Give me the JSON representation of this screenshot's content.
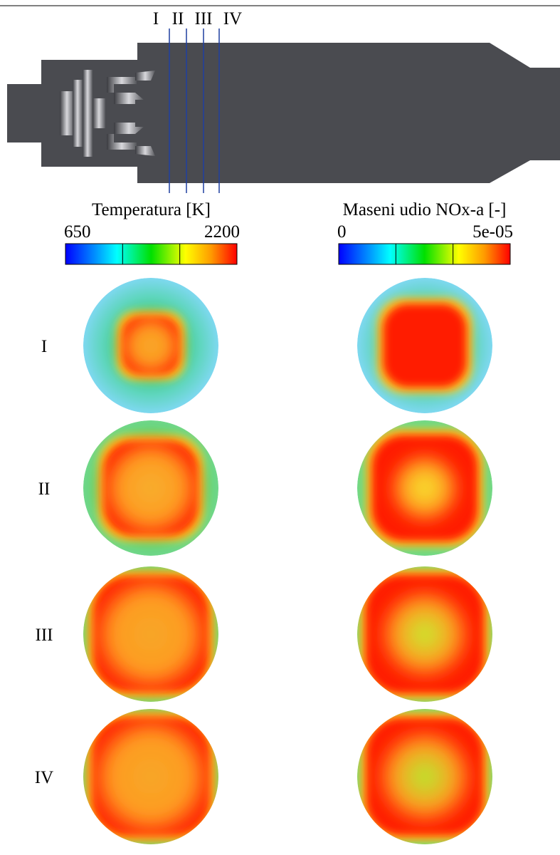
{
  "sections": [
    "I",
    "II",
    "III",
    "IV"
  ],
  "colorbars": [
    {
      "title": "Temperatura [K]",
      "min": "650",
      "max": "2200"
    },
    {
      "title": "Maseni udio NOx-a [-]",
      "min": "0",
      "max": "5e-05"
    }
  ]
}
